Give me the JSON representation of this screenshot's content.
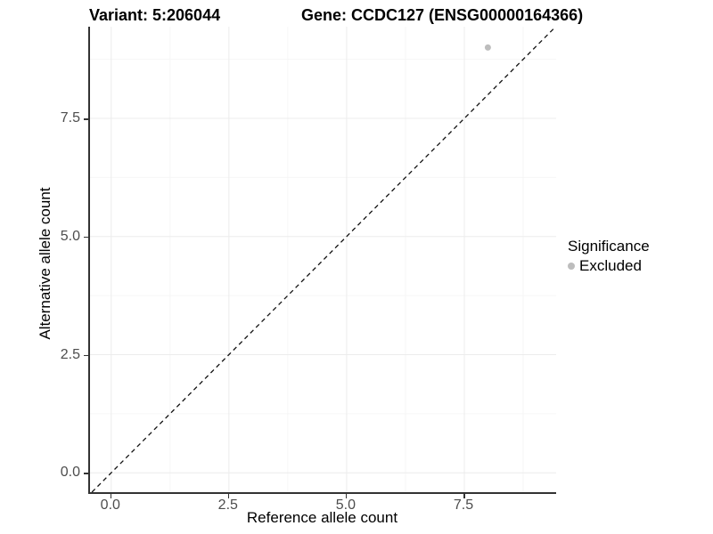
{
  "title": {
    "variant": "Variant: 5:206044",
    "gene": "Gene: CCDC127 (ENSG00000164366)"
  },
  "chart_data": {
    "type": "scatter",
    "title_left": "Variant: 5:206044",
    "title_right": "Gene: CCDC127 (ENSG00000164366)",
    "xlabel": "Reference allele count",
    "ylabel": "Alternative allele count",
    "xlim": [
      -0.45,
      9.45
    ],
    "ylim": [
      -0.41,
      9.44
    ],
    "x_major_ticks": [
      0,
      2.5,
      5,
      7.5
    ],
    "y_major_ticks": [
      0,
      2.5,
      5,
      7.5
    ],
    "x_minor_ticks": [
      1.25,
      3.75,
      6.25,
      8.75
    ],
    "y_minor_ticks": [
      1.25,
      3.75,
      6.25,
      8.75
    ],
    "x_tick_labels": [
      "0.0",
      "2.5",
      "5.0",
      "7.5"
    ],
    "y_tick_labels": [
      "0.0",
      "2.5",
      "5.0",
      "7.5"
    ],
    "grid": "major+minor",
    "identity_line": {
      "equation": "y=x",
      "style": "dashed",
      "color": "#111111"
    },
    "series": [
      {
        "name": "Excluded",
        "color": "#bdbdbd",
        "points": [
          {
            "x": 8,
            "y": 9
          }
        ]
      }
    ],
    "legend": {
      "title": "Significance",
      "position": "right",
      "entries": [
        {
          "label": "Excluded",
          "color": "#bdbdbd"
        }
      ]
    }
  },
  "colors": {
    "background": "#ffffff",
    "axis_line": "#333333",
    "tick_label": "#4d4d4d",
    "grid_major": "#ececec",
    "grid_minor": "#f6f6f6",
    "point": "#bdbdbd",
    "title_text": "#000000"
  }
}
